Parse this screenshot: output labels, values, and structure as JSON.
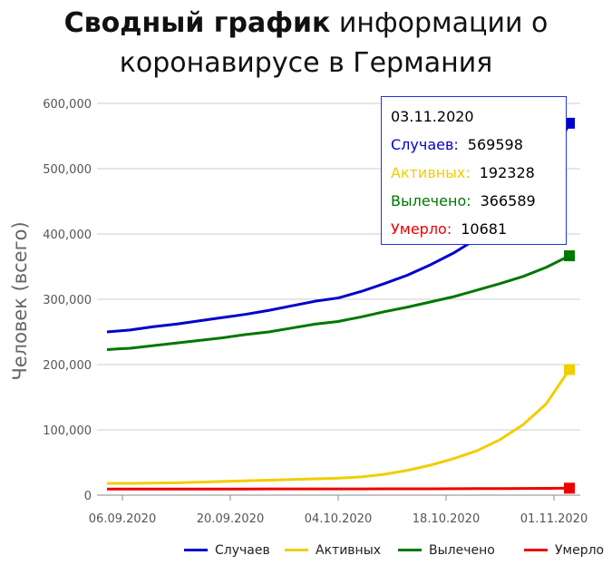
{
  "title_bold": "Сводный график",
  "title_rest": " информации о коронавирусе в Германия",
  "chart_data": {
    "type": "line",
    "ylabel": "Человек (всего)",
    "xlabel": "",
    "ylim": [
      0,
      600000
    ],
    "yticks": [
      "0",
      "100,000",
      "200,000",
      "300,000",
      "400,000",
      "500,000",
      "600,000"
    ],
    "xticks": [
      "06.09.2020",
      "20.09.2020",
      "04.10.2020",
      "18.10.2020",
      "01.11.2020"
    ],
    "x_start": "2020-09-04",
    "x_end": "2020-11-03",
    "grid": true,
    "legend_position": "bottom-right",
    "x": [
      "2020-09-04",
      "2020-09-07",
      "2020-09-10",
      "2020-09-13",
      "2020-09-16",
      "2020-09-19",
      "2020-09-22",
      "2020-09-25",
      "2020-09-28",
      "2020-10-01",
      "2020-10-04",
      "2020-10-07",
      "2020-10-10",
      "2020-10-13",
      "2020-10-16",
      "2020-10-19",
      "2020-10-22",
      "2020-10-25",
      "2020-10-28",
      "2020-10-31",
      "2020-11-03"
    ],
    "series": [
      {
        "name": "Случаев",
        "color": "#0000cc",
        "values": [
          250000,
          253000,
          258000,
          262000,
          267000,
          272000,
          277000,
          283000,
          290000,
          297000,
          302000,
          312000,
          324000,
          337000,
          353000,
          371000,
          393000,
          420000,
          453000,
          500000,
          569598
        ]
      },
      {
        "name": "Активных",
        "color": "#f2cd00",
        "values": [
          18000,
          18000,
          18500,
          19000,
          20000,
          21000,
          22000,
          23000,
          24000,
          25000,
          26000,
          28000,
          32000,
          38000,
          46000,
          56000,
          68000,
          85000,
          108000,
          140000,
          192328
        ]
      },
      {
        "name": "Вылечено",
        "color": "#007700",
        "values": [
          223000,
          225000,
          229000,
          233000,
          237000,
          241000,
          246000,
          250000,
          256000,
          262000,
          266000,
          273000,
          281000,
          288000,
          296000,
          304000,
          314000,
          324000,
          335000,
          349000,
          366589
        ]
      },
      {
        "name": "Умерло",
        "color": "#ee0000",
        "values": [
          9300,
          9320,
          9340,
          9370,
          9400,
          9430,
          9450,
          9480,
          9510,
          9540,
          9580,
          9620,
          9680,
          9750,
          9800,
          9900,
          10000,
          10150,
          10300,
          10450,
          10681
        ]
      }
    ]
  },
  "tooltip": {
    "date": "03.11.2020",
    "rows": [
      {
        "label": "Случаев:",
        "value": "569598",
        "color": "#0000cc"
      },
      {
        "label": "Активных:",
        "value": "192328",
        "color": "#f2cd00"
      },
      {
        "label": "Вылечено:",
        "value": "366589",
        "color": "#007700"
      },
      {
        "label": "Умерло:",
        "value": "10681",
        "color": "#ee0000"
      }
    ]
  }
}
